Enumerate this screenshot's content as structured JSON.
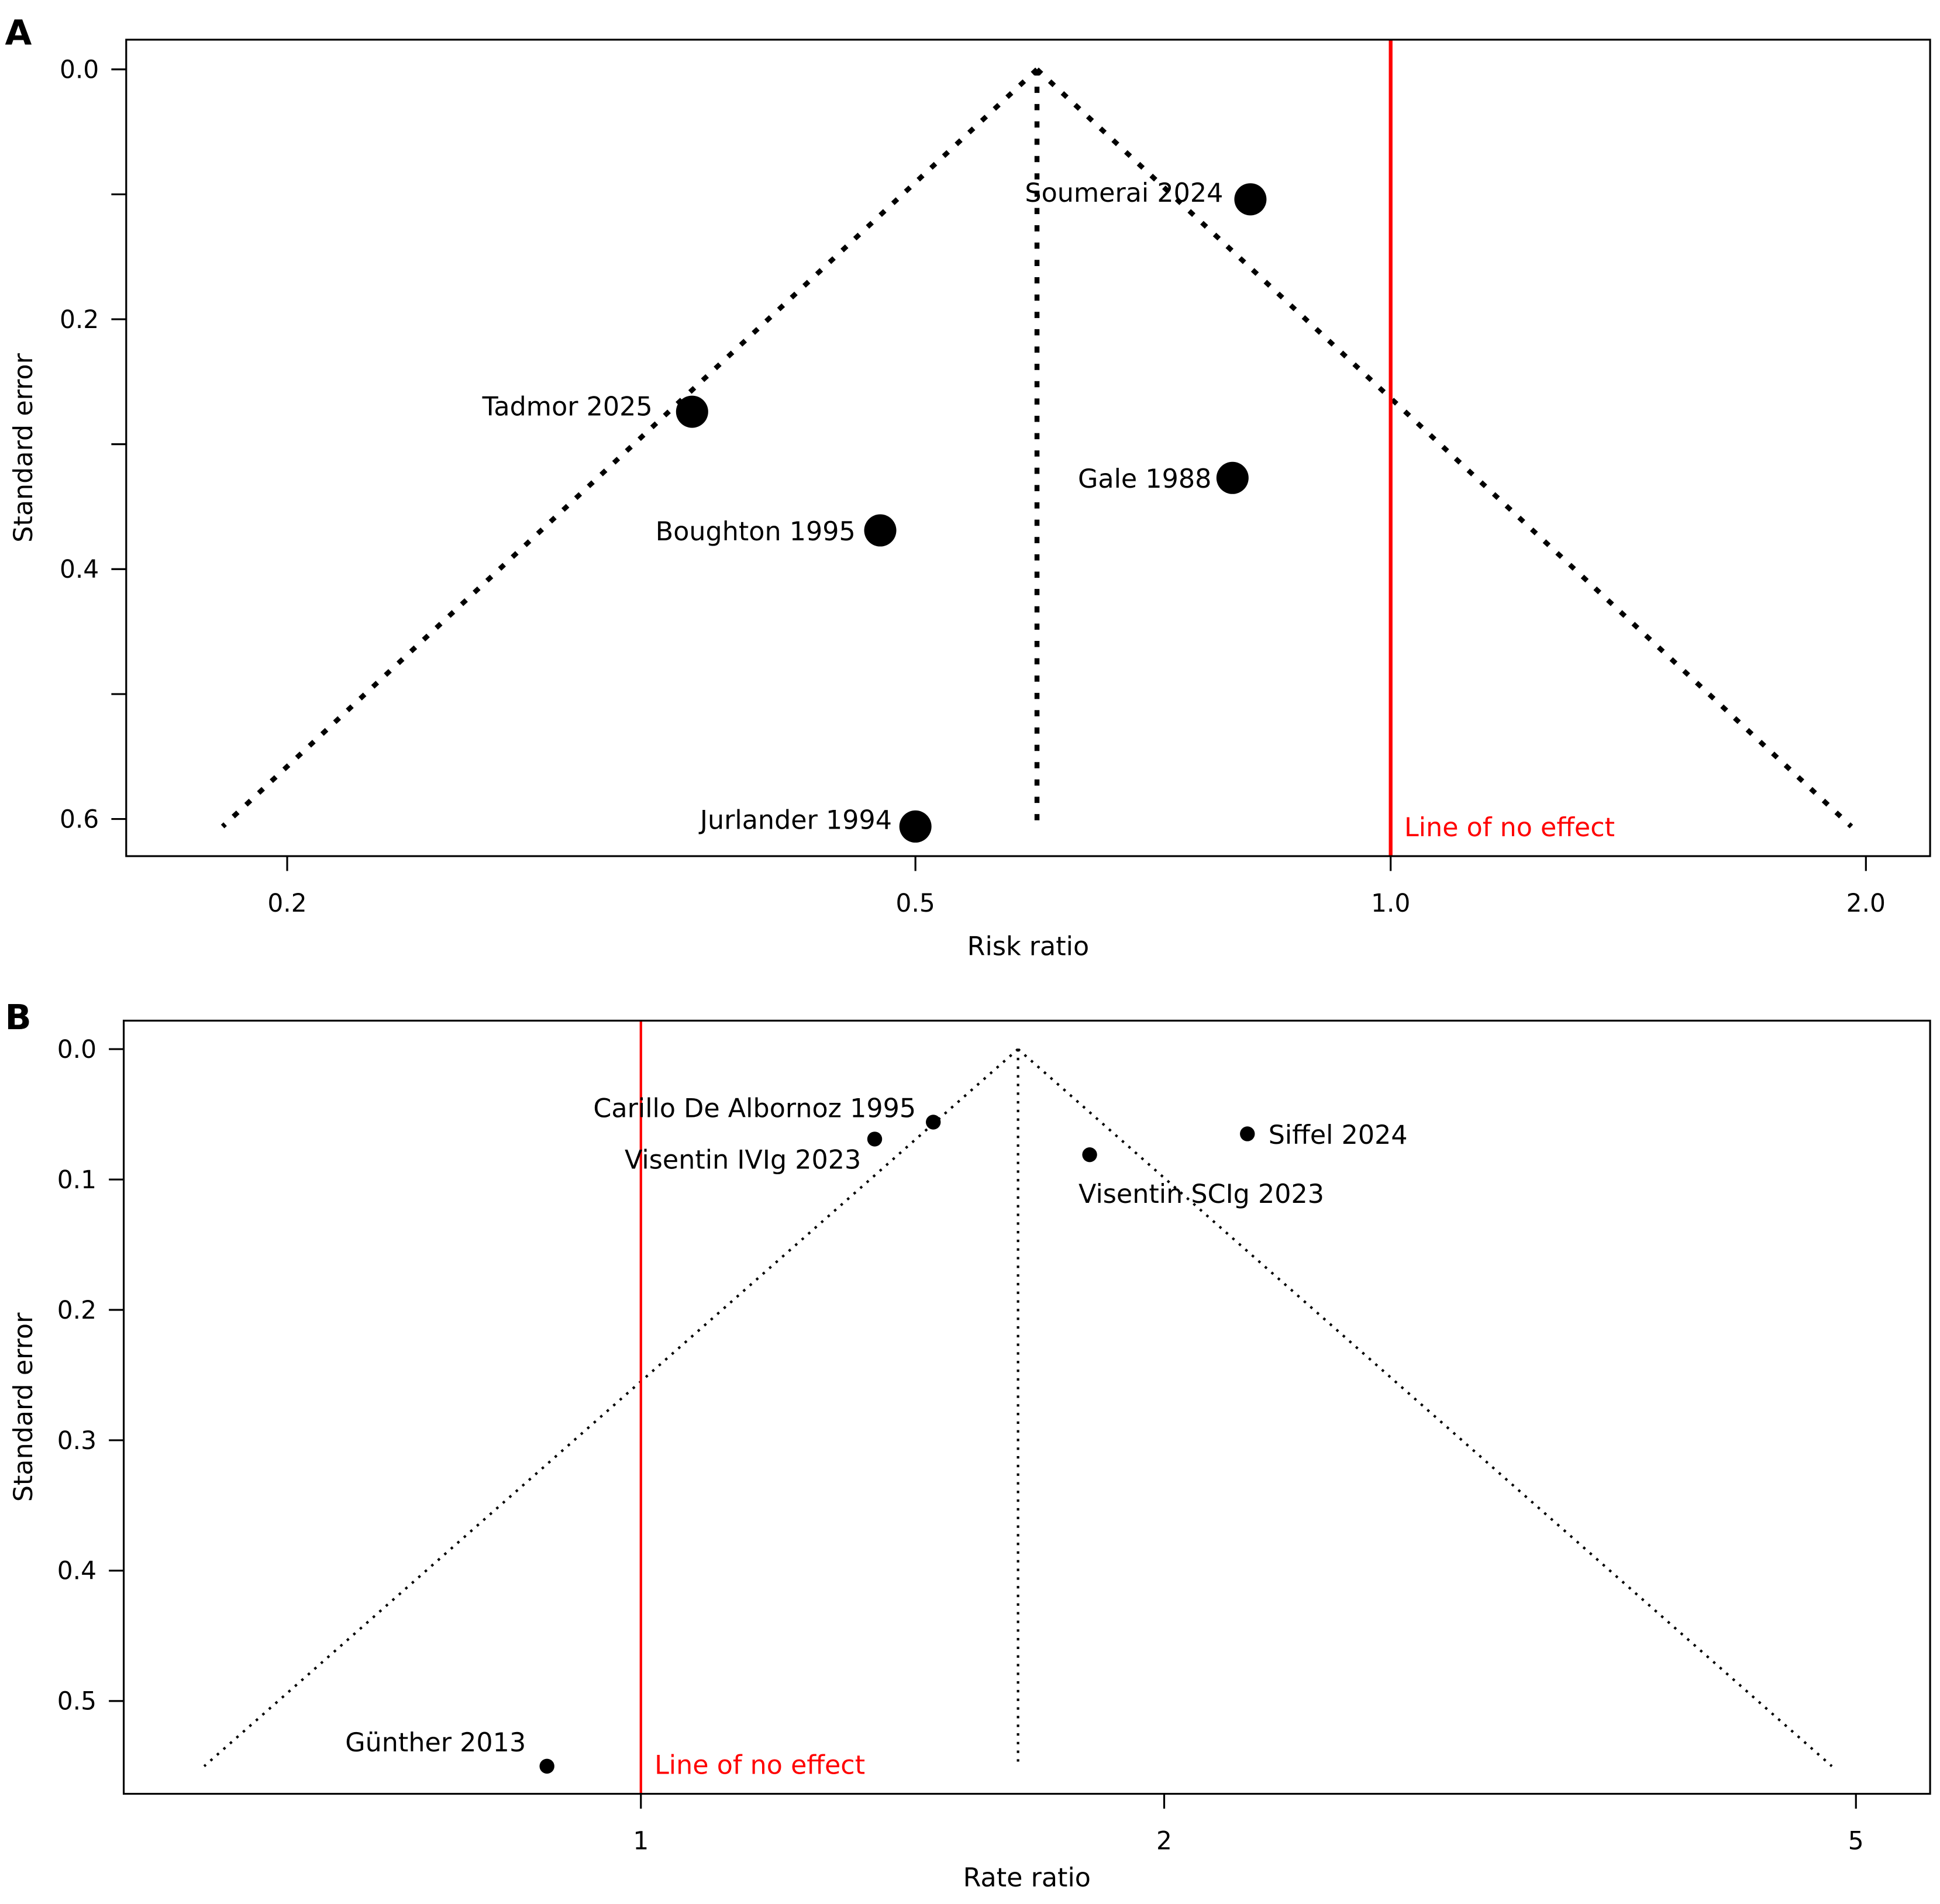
{
  "chart_data": [
    {
      "type": "scatter",
      "panel_label": "A",
      "xlabel": "Risk ratio",
      "ylabel": "Standard error",
      "x_scale": "log",
      "x_ticks": [
        0.2,
        0.5,
        1.0,
        2.0
      ],
      "x_tick_labels": [
        "0.2",
        "0.5",
        "1.0",
        "2.0"
      ],
      "y_ticks": [
        0.0,
        0.1,
        0.2,
        0.3,
        0.4,
        0.5,
        0.6
      ],
      "y_tick_labels": [
        "0.0",
        "",
        "0.2",
        "",
        "0.4",
        "",
        "0.6"
      ],
      "y_reversed": true,
      "points": [
        {
          "label": "Soumerai 2024",
          "x": 0.815,
          "y": 0.104
        },
        {
          "label": "Tadmor 2025",
          "x": 0.361,
          "y": 0.274
        },
        {
          "label": "Gale 1988",
          "x": 0.794,
          "y": 0.327
        },
        {
          "label": "Boughton 1995",
          "x": 0.475,
          "y": 0.369
        },
        {
          "label": "Jurlander 1994",
          "x": 0.5,
          "y": 0.606
        }
      ],
      "funnel": {
        "pooled": 0.597,
        "max_se": 0.606,
        "style": "dashed"
      },
      "reference_line": {
        "x": 1.0,
        "label": "Line of no effect",
        "color": "#ff0000"
      }
    },
    {
      "type": "scatter",
      "panel_label": "B",
      "xlabel": "Rate ratio",
      "ylabel": "Standard error",
      "x_scale": "log",
      "x_ticks": [
        1,
        2,
        5
      ],
      "x_tick_labels": [
        "1",
        "2",
        "5"
      ],
      "y_ticks": [
        0.0,
        0.1,
        0.2,
        0.3,
        0.4,
        0.5
      ],
      "y_tick_labels": [
        "0.0",
        "0.1",
        "0.2",
        "0.3",
        "0.4",
        "0.5"
      ],
      "y_reversed": true,
      "points": [
        {
          "label": "Carillo De Albornoz 1995",
          "x": 1.473,
          "y": 0.056
        },
        {
          "label": "Visentin IVIg 2023",
          "x": 1.363,
          "y": 0.069
        },
        {
          "label": "Siffel 2024",
          "x": 2.233,
          "y": 0.065
        },
        {
          "label": "Visentin SCIg 2023",
          "x": 1.812,
          "y": 0.081
        },
        {
          "label": "Günther 2013",
          "x": 0.883,
          "y": 0.55
        }
      ],
      "funnel": {
        "pooled": 1.648,
        "max_se": 0.55,
        "style": "dotted"
      },
      "reference_line": {
        "x": 1,
        "label": "Line of no effect",
        "color": "#ff0000"
      }
    }
  ]
}
